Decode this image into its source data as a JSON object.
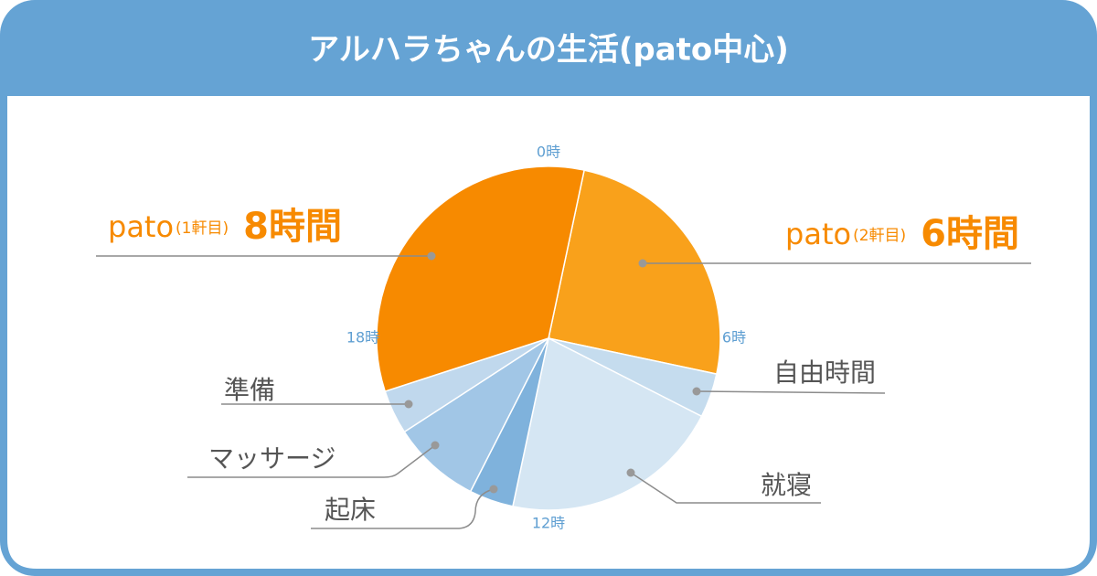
{
  "chart_data": {
    "type": "pie",
    "title": "アルハラちゃんの生活(pato中心)",
    "slices": [
      {
        "label": "pato",
        "note": "(2軒目)",
        "value": 6,
        "value_label": "6時間",
        "color": "#f9a11b"
      },
      {
        "label": "自由時間",
        "value": 1,
        "color": "#c5dcee"
      },
      {
        "label": "就寝",
        "value": 5,
        "color": "#d5e6f3"
      },
      {
        "label": "起床",
        "value": 1,
        "color": "#7fb2dc"
      },
      {
        "label": "マッサージ",
        "value": 2,
        "color": "#a1c6e6"
      },
      {
        "label": "準備",
        "value": 1,
        "color": "#c0d8ed"
      },
      {
        "label": "pato",
        "note": "(1軒目)",
        "value": 8,
        "value_label": "8時間",
        "color": "#f78a00"
      }
    ],
    "ticks": [
      {
        "value": 0,
        "label": "0時"
      },
      {
        "value": 6,
        "label": "6時"
      },
      {
        "value": 12,
        "label": "12時"
      },
      {
        "value": 18,
        "label": "18時"
      }
    ]
  }
}
